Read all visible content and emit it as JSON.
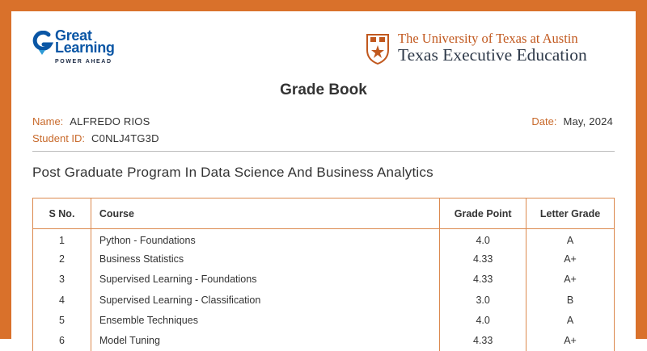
{
  "brand": {
    "gl_name_line1": "Great",
    "gl_name_line2": "Learning",
    "gl_tagline": "POWER AHEAD",
    "ut_line1": "The University of Texas at Austin",
    "ut_line2": "Texas Executive Education",
    "accent_color": "#d9712b",
    "gl_blue": "#0a56a5"
  },
  "document": {
    "title": "Grade Book",
    "name_label": "Name:",
    "name_value": "ALFREDO RIOS",
    "student_id_label": "Student ID:",
    "student_id_value": "C0NLJ4TG3D",
    "date_label": "Date:",
    "date_value": "May, 2024",
    "program": "Post Graduate Program In Data Science And Business Analytics"
  },
  "table": {
    "headers": [
      "S No.",
      "Course",
      "Grade Point",
      "Letter Grade"
    ],
    "rows": [
      {
        "sno": "1",
        "course": "Python - Foundations",
        "grade_point": "4.0",
        "letter": "A"
      },
      {
        "sno": "2",
        "course": "Business Statistics",
        "grade_point": "4.33",
        "letter": "A+"
      },
      {
        "sno": "3",
        "course": "Supervised Learning - Foundations",
        "grade_point": "4.33",
        "letter": "A+"
      },
      {
        "sno": "4",
        "course": "Supervised Learning - Classification",
        "grade_point": "3.0",
        "letter": "B"
      },
      {
        "sno": "5",
        "course": "Ensemble Techniques",
        "grade_point": "4.0",
        "letter": "A"
      },
      {
        "sno": "6",
        "course": "Model Tuning",
        "grade_point": "4.33",
        "letter": "A+"
      }
    ]
  }
}
